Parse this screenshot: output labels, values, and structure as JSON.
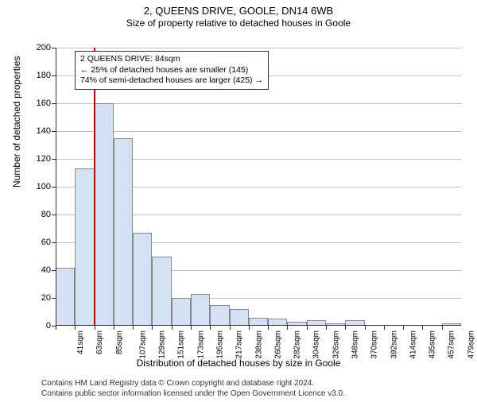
{
  "header": {
    "title": "2, QUEENS DRIVE, GOOLE, DN14 6WB",
    "subtitle": "Size of property relative to detached houses in Goole"
  },
  "axes": {
    "ylabel": "Number of detached properties",
    "xlabel": "Distribution of detached houses by size in Goole",
    "ymax": 200,
    "ytick_step": 20,
    "grid_color": "#c0c0c0",
    "label_fontsize": 12,
    "tick_fontsize": 11
  },
  "chart": {
    "type": "histogram",
    "bar_fill": "#d4e1f5",
    "bar_border": "#888888",
    "background": "#ffffff",
    "categories": [
      "41sqm",
      "63sqm",
      "85sqm",
      "107sqm",
      "129sqm",
      "151sqm",
      "173sqm",
      "195sqm",
      "217sqm",
      "238sqm",
      "260sqm",
      "282sqm",
      "304sqm",
      "326sqm",
      "348sqm",
      "370sqm",
      "392sqm",
      "414sqm",
      "435sqm",
      "457sqm",
      "479sqm"
    ],
    "values": [
      42,
      113,
      160,
      135,
      67,
      50,
      20,
      23,
      15,
      12,
      6,
      5,
      3,
      4,
      2,
      4,
      0,
      0,
      0,
      0,
      2
    ]
  },
  "marker": {
    "color": "#cc0000",
    "position_index": 2,
    "info_lines": {
      "line1": "2 QUEENS DRIVE: 84sqm",
      "line2": "← 25% of detached houses are smaller (145)",
      "line3": "74% of semi-detached houses are larger (425) →"
    }
  },
  "footer": {
    "line1": "Contains HM Land Registry data © Crown copyright and database right 2024.",
    "line2": "Contains public sector information licensed under the Open Government Licence v3.0."
  }
}
